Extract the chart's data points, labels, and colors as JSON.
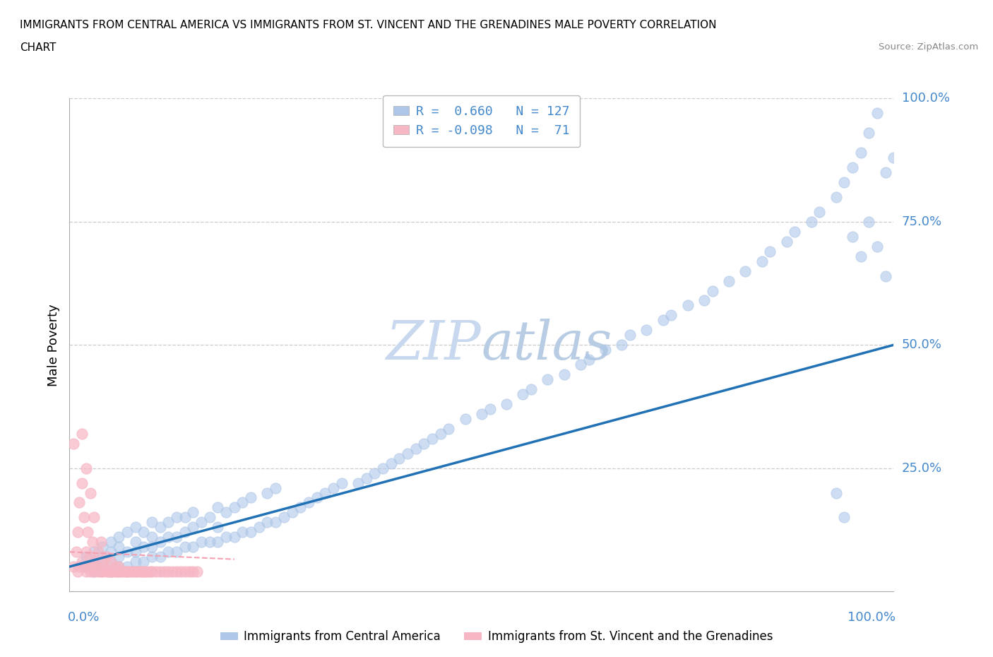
{
  "title_line1": "IMMIGRANTS FROM CENTRAL AMERICA VS IMMIGRANTS FROM ST. VINCENT AND THE GRENADINES MALE POVERTY CORRELATION",
  "title_line2": "CHART",
  "source": "Source: ZipAtlas.com",
  "ylabel": "Male Poverty",
  "legend_blue_R": "0.660",
  "legend_blue_N": "127",
  "legend_pink_R": "-0.098",
  "legend_pink_N": "71",
  "blue_color": "#aec7e8",
  "blue_edge": "#aec7e8",
  "pink_color": "#f7b6c4",
  "pink_edge": "#f7b6c4",
  "line_blue_color": "#2171b5",
  "line_pink_color": "#f4a0b0",
  "grid_color": "#cccccc",
  "axis_label_color": "#4488cc",
  "title_color": "#000000",
  "watermark_color": "#dde8f5",
  "background": "#ffffff",
  "xlim": [
    0.0,
    1.0
  ],
  "ylim": [
    0.0,
    1.0
  ],
  "ytick_vals": [
    0.25,
    0.5,
    0.75,
    1.0
  ],
  "ytick_labels": [
    "25.0%",
    "50.0%",
    "75.0%",
    "100.0%"
  ],
  "blue_x": [
    0.02,
    0.02,
    0.03,
    0.03,
    0.03,
    0.04,
    0.04,
    0.04,
    0.05,
    0.05,
    0.05,
    0.05,
    0.06,
    0.06,
    0.06,
    0.06,
    0.07,
    0.07,
    0.07,
    0.08,
    0.08,
    0.08,
    0.08,
    0.09,
    0.09,
    0.09,
    0.1,
    0.1,
    0.1,
    0.1,
    0.11,
    0.11,
    0.11,
    0.12,
    0.12,
    0.12,
    0.13,
    0.13,
    0.13,
    0.14,
    0.14,
    0.14,
    0.15,
    0.15,
    0.15,
    0.16,
    0.16,
    0.17,
    0.17,
    0.18,
    0.18,
    0.18,
    0.19,
    0.19,
    0.2,
    0.2,
    0.21,
    0.21,
    0.22,
    0.22,
    0.23,
    0.24,
    0.24,
    0.25,
    0.25,
    0.26,
    0.27,
    0.28,
    0.29,
    0.3,
    0.31,
    0.32,
    0.33,
    0.35,
    0.36,
    0.37,
    0.38,
    0.39,
    0.4,
    0.41,
    0.42,
    0.43,
    0.44,
    0.45,
    0.46,
    0.48,
    0.5,
    0.51,
    0.53,
    0.55,
    0.56,
    0.58,
    0.6,
    0.62,
    0.63,
    0.65,
    0.67,
    0.68,
    0.7,
    0.72,
    0.73,
    0.75,
    0.77,
    0.78,
    0.8,
    0.82,
    0.84,
    0.85,
    0.87,
    0.88,
    0.9,
    0.91,
    0.93,
    0.94,
    0.95,
    0.96,
    0.97,
    0.98,
    0.99,
    1.0,
    0.99,
    0.98,
    0.97,
    0.96,
    0.95,
    0.94,
    0.93
  ],
  "blue_y": [
    0.05,
    0.07,
    0.04,
    0.06,
    0.08,
    0.05,
    0.07,
    0.09,
    0.04,
    0.06,
    0.08,
    0.1,
    0.05,
    0.07,
    0.09,
    0.11,
    0.05,
    0.08,
    0.12,
    0.06,
    0.08,
    0.1,
    0.13,
    0.06,
    0.09,
    0.12,
    0.07,
    0.09,
    0.11,
    0.14,
    0.07,
    0.1,
    0.13,
    0.08,
    0.11,
    0.14,
    0.08,
    0.11,
    0.15,
    0.09,
    0.12,
    0.15,
    0.09,
    0.13,
    0.16,
    0.1,
    0.14,
    0.1,
    0.15,
    0.1,
    0.13,
    0.17,
    0.11,
    0.16,
    0.11,
    0.17,
    0.12,
    0.18,
    0.12,
    0.19,
    0.13,
    0.14,
    0.2,
    0.14,
    0.21,
    0.15,
    0.16,
    0.17,
    0.18,
    0.19,
    0.2,
    0.21,
    0.22,
    0.22,
    0.23,
    0.24,
    0.25,
    0.26,
    0.27,
    0.28,
    0.29,
    0.3,
    0.31,
    0.32,
    0.33,
    0.35,
    0.36,
    0.37,
    0.38,
    0.4,
    0.41,
    0.43,
    0.44,
    0.46,
    0.47,
    0.49,
    0.5,
    0.52,
    0.53,
    0.55,
    0.56,
    0.58,
    0.59,
    0.61,
    0.63,
    0.65,
    0.67,
    0.69,
    0.71,
    0.73,
    0.75,
    0.77,
    0.8,
    0.83,
    0.86,
    0.89,
    0.93,
    0.97,
    0.85,
    0.88,
    0.64,
    0.7,
    0.75,
    0.68,
    0.72,
    0.15,
    0.2
  ],
  "pink_x": [
    0.005,
    0.005,
    0.008,
    0.01,
    0.01,
    0.012,
    0.012,
    0.015,
    0.015,
    0.015,
    0.018,
    0.018,
    0.02,
    0.02,
    0.02,
    0.022,
    0.022,
    0.025,
    0.025,
    0.025,
    0.028,
    0.028,
    0.03,
    0.03,
    0.03,
    0.032,
    0.035,
    0.035,
    0.038,
    0.038,
    0.04,
    0.04,
    0.042,
    0.045,
    0.045,
    0.048,
    0.05,
    0.05,
    0.052,
    0.055,
    0.055,
    0.058,
    0.06,
    0.06,
    0.062,
    0.065,
    0.068,
    0.07,
    0.072,
    0.075,
    0.078,
    0.08,
    0.082,
    0.085,
    0.088,
    0.09,
    0.092,
    0.095,
    0.098,
    0.1,
    0.105,
    0.11,
    0.115,
    0.12,
    0.125,
    0.13,
    0.135,
    0.14,
    0.145,
    0.15,
    0.155
  ],
  "pink_y": [
    0.05,
    0.3,
    0.08,
    0.04,
    0.12,
    0.05,
    0.18,
    0.06,
    0.22,
    0.32,
    0.05,
    0.15,
    0.04,
    0.08,
    0.25,
    0.05,
    0.12,
    0.04,
    0.07,
    0.2,
    0.05,
    0.1,
    0.04,
    0.06,
    0.15,
    0.05,
    0.04,
    0.08,
    0.04,
    0.1,
    0.04,
    0.06,
    0.05,
    0.04,
    0.07,
    0.04,
    0.04,
    0.06,
    0.04,
    0.04,
    0.05,
    0.04,
    0.04,
    0.05,
    0.04,
    0.04,
    0.04,
    0.04,
    0.04,
    0.04,
    0.04,
    0.04,
    0.04,
    0.04,
    0.04,
    0.04,
    0.04,
    0.04,
    0.04,
    0.04,
    0.04,
    0.04,
    0.04,
    0.04,
    0.04,
    0.04,
    0.04,
    0.04,
    0.04,
    0.04,
    0.04
  ],
  "blue_line_x0": 0.0,
  "blue_line_y0": 0.05,
  "blue_line_x1": 1.0,
  "blue_line_y1": 0.5,
  "pink_line_x0": 0.0,
  "pink_line_y0": 0.08,
  "pink_line_x1": 0.2,
  "pink_line_y1": 0.065
}
